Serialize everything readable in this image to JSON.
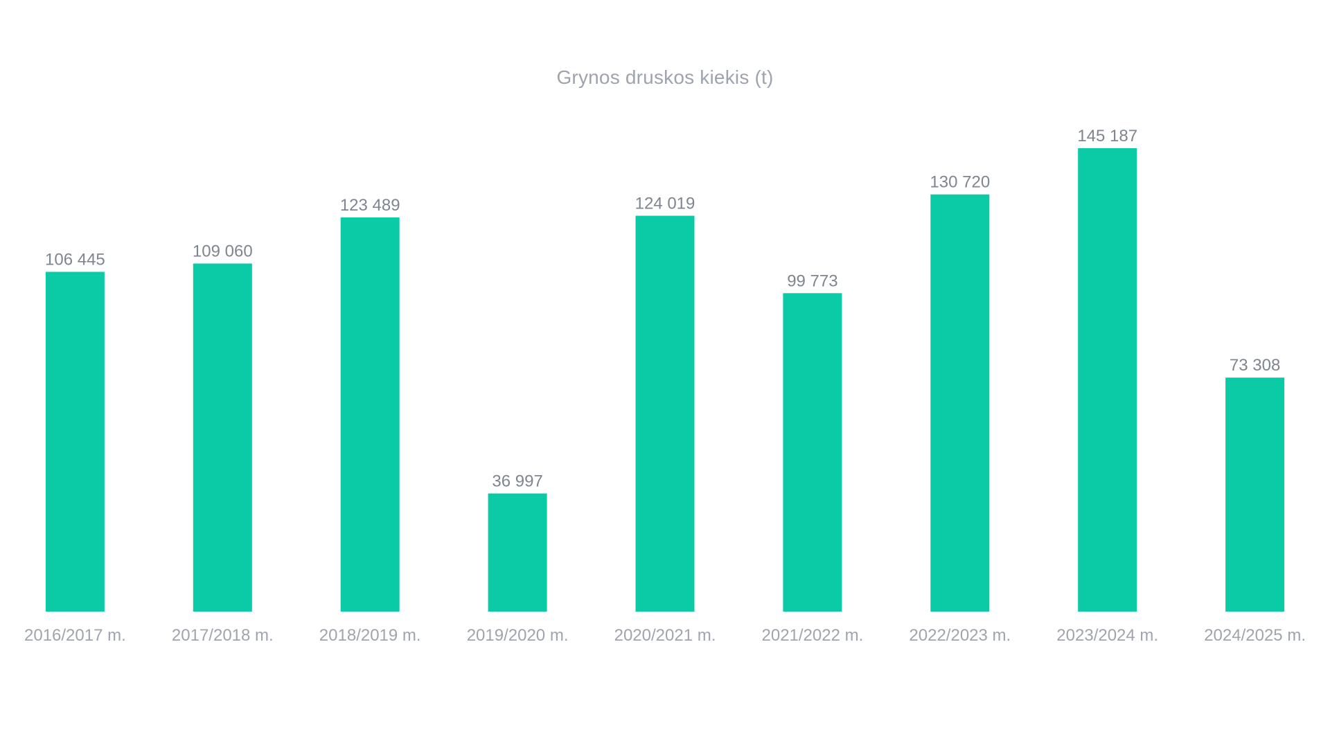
{
  "chart_data": {
    "type": "bar",
    "title": "Grynos druskos kiekis (t)",
    "categories": [
      "2016/2017 m.",
      "2017/2018 m.",
      "2018/2019 m.",
      "2019/2020 m.",
      "2020/2021 m.",
      "2021/2022 m.",
      "2022/2023 m.",
      "2023/2024 m.",
      "2024/2025 m."
    ],
    "values": [
      106445,
      109060,
      123489,
      36997,
      124019,
      99773,
      130720,
      145187,
      73308
    ],
    "value_labels": [
      "106 445",
      "109 060",
      "123 489",
      "36 997",
      "124 019",
      "99 773",
      "130 720",
      "145 187",
      "73 308"
    ],
    "xlabel": "",
    "ylabel": "",
    "ylim": [
      0,
      145187
    ],
    "grid": false,
    "legend": "none",
    "colors": {
      "bar": "#0bcba7",
      "label_text": "#7f858f",
      "tick_text": "#a0a4ad",
      "title_text": "#9ea3ae"
    }
  }
}
